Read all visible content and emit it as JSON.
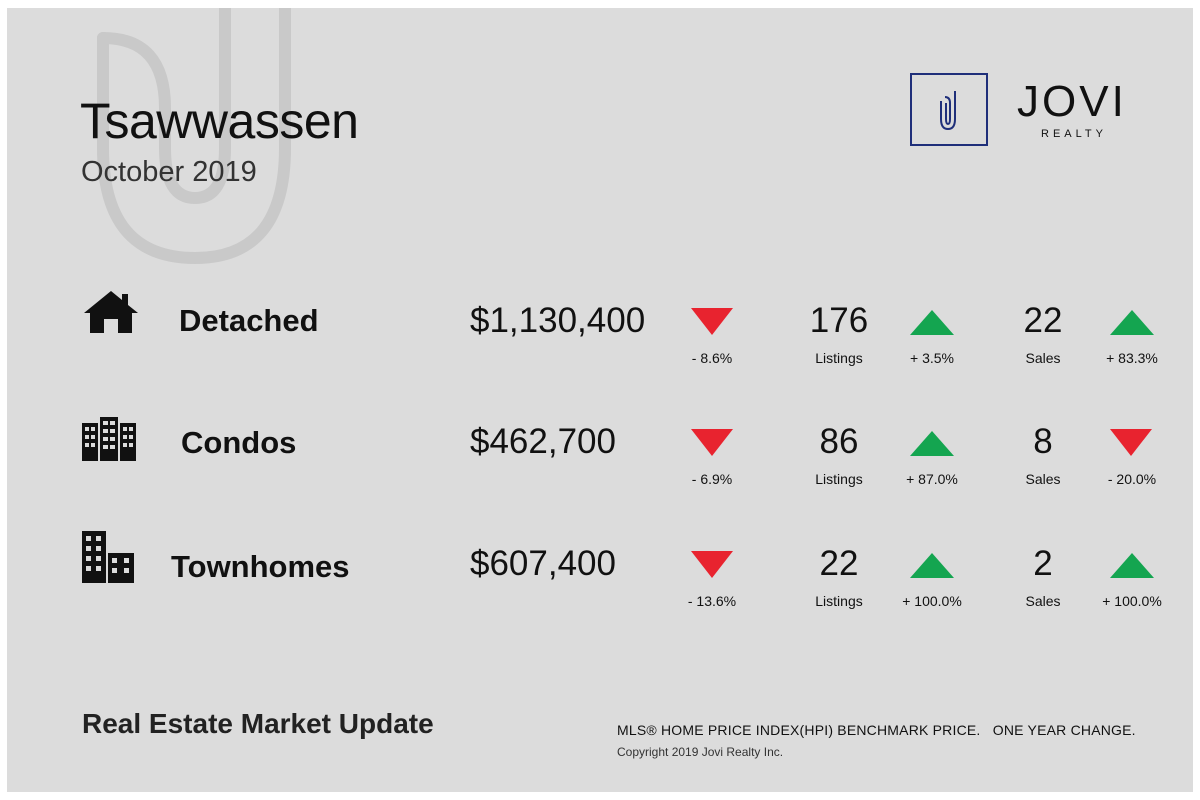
{
  "header": {
    "title": "Tsawwassen",
    "subtitle": "October 2019"
  },
  "logo": {
    "letter": "J",
    "name": "JOVI",
    "sub": "REALTY",
    "color": "#1f2f7a"
  },
  "rows": [
    {
      "type": "Detached",
      "icon": "house-icon",
      "price": "$1,130,400",
      "price_change": "- 8.6%",
      "price_dir": "down",
      "listings": "176",
      "listings_label": "Listings",
      "listings_change": "+ 3.5%",
      "listings_dir": "up",
      "sales": "22",
      "sales_label": "Sales",
      "sales_change": "+ 83.3%",
      "sales_dir": "up"
    },
    {
      "type": "Condos",
      "icon": "condo-building-icon",
      "price": "$462,700",
      "price_change": "- 6.9%",
      "price_dir": "down",
      "listings": "86",
      "listings_label": "Listings",
      "listings_change": "+ 87.0%",
      "listings_dir": "up",
      "sales": "8",
      "sales_label": "Sales",
      "sales_change": "- 20.0%",
      "sales_dir": "down"
    },
    {
      "type": "Townhomes",
      "icon": "townhome-building-icon",
      "price": "$607,400",
      "price_change": "- 13.6%",
      "price_dir": "down",
      "listings": "22",
      "listings_label": "Listings",
      "listings_change": "+ 100.0%",
      "listings_dir": "up",
      "sales": "2",
      "sales_label": "Sales",
      "sales_change": "+ 100.0%",
      "sales_dir": "up"
    }
  ],
  "footer": {
    "title": "Real Estate Market Update",
    "note": "MLS® HOME PRICE INDEX(HPI) BENCHMARK PRICE.   ONE YEAR CHANGE.",
    "copyright": "Copyright 2019 Jovi Realty Inc."
  },
  "colors": {
    "background": "#dcdcdc",
    "down": "#e8232f",
    "up": "#14a550"
  }
}
